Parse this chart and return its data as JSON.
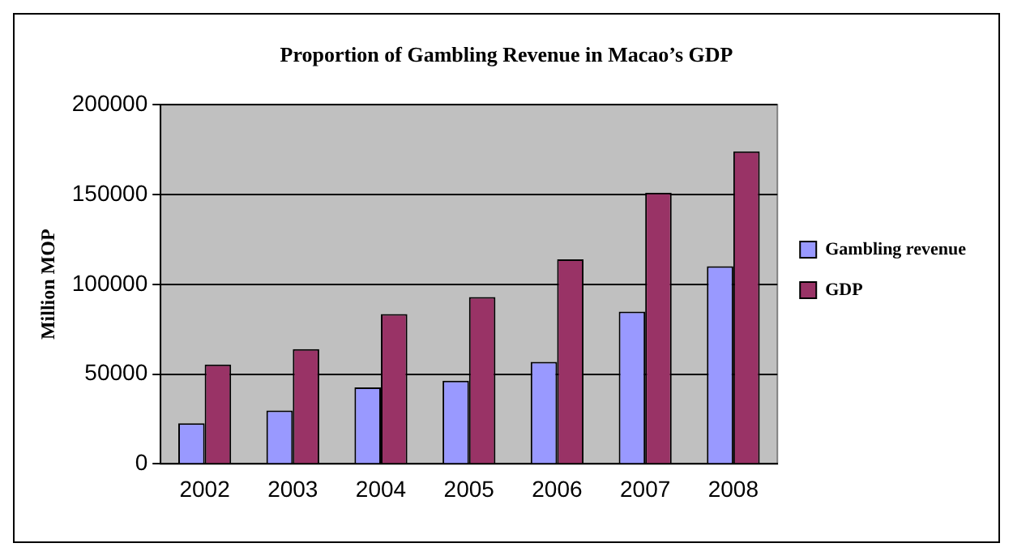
{
  "chart_data": {
    "type": "bar",
    "title": "Proportion of Gambling Revenue in Macao’s GDP",
    "ylabel": "Million MOP",
    "categories": [
      "2002",
      "2003",
      "2004",
      "2005",
      "2006",
      "2007",
      "2008"
    ],
    "series": [
      {
        "name": "Gambling revenue",
        "color": "#9999ff",
        "values": [
          22600,
          29700,
          42600,
          46300,
          56800,
          84800,
          110100
        ]
      },
      {
        "name": "GDP",
        "color": "#993366",
        "values": [
          55400,
          63900,
          83400,
          92900,
          113900,
          151000,
          174000
        ]
      }
    ],
    "ylim": [
      0,
      200000
    ],
    "yticks": [
      0,
      50000,
      100000,
      150000,
      200000
    ],
    "grid": "y",
    "legend": "right"
  }
}
